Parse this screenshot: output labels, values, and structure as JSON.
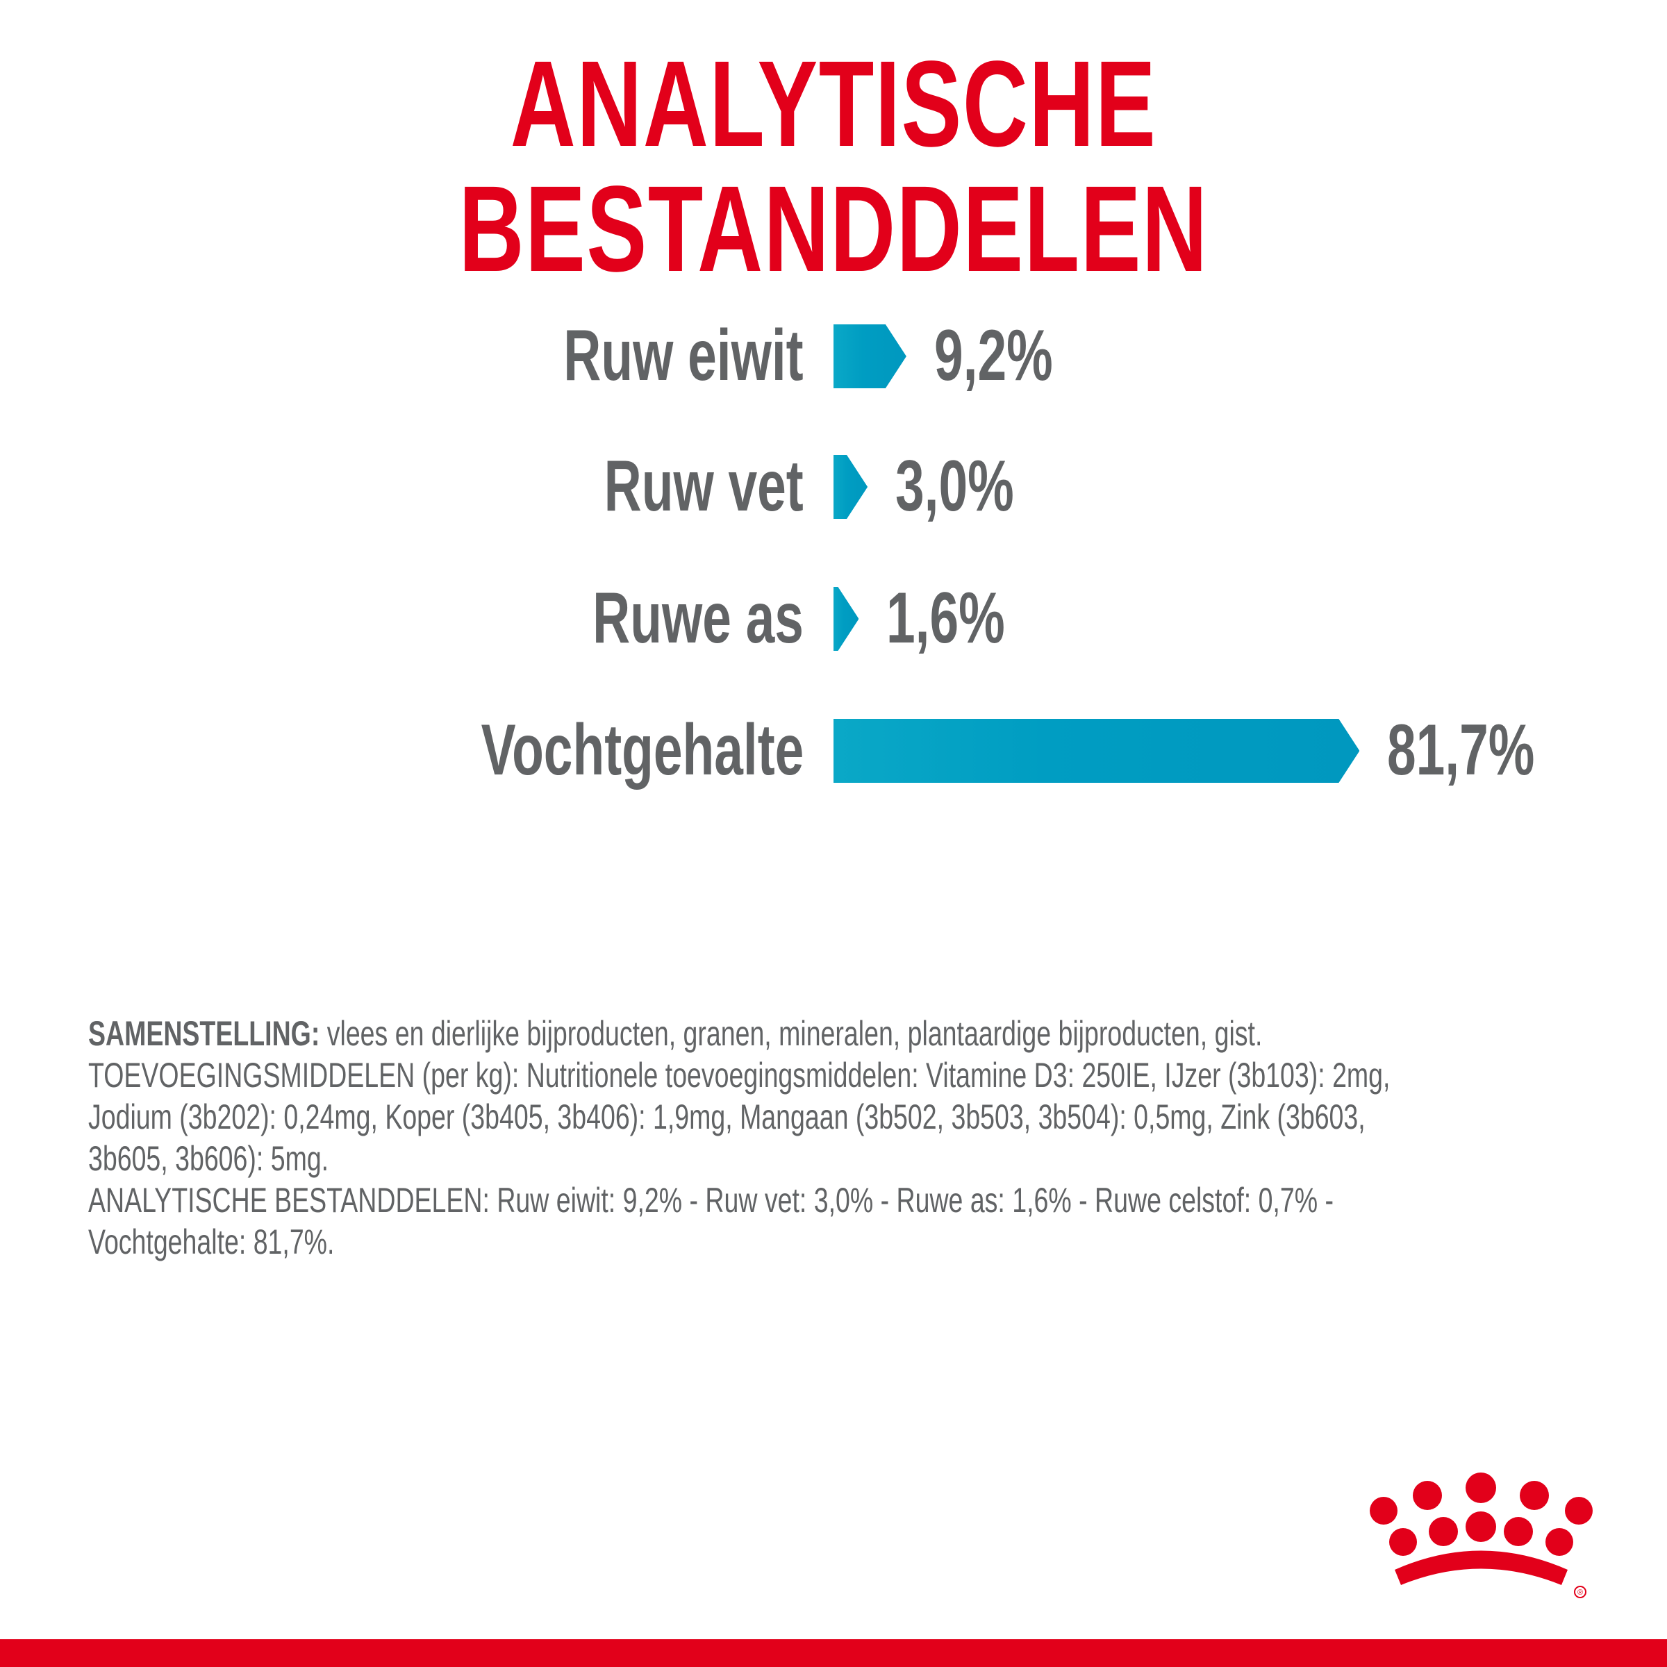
{
  "title": "ANALYTISCHE BESTANDDELEN",
  "chart_data": {
    "type": "bar",
    "orientation": "horizontal",
    "categories": [
      "Ruw eiwit",
      "Ruw vet",
      "Ruwe as",
      "Vochtgehalte"
    ],
    "values": [
      9.2,
      3.0,
      1.6,
      81.7
    ],
    "value_labels": [
      "9,2%",
      "3,0%",
      "1,6%",
      "81,7%"
    ],
    "unit": "%",
    "bar_color": "#009dc2",
    "grid": false
  },
  "composition": {
    "heading": "SAMENSTELLING:",
    "first_line_rest": " vlees en dierlijke bijproducten, granen, mineralen, plantaardige bijproducten, gist.",
    "lines": [
      "TOEVOEGINGSMIDDELEN (per kg): Nutritionele toevoegingsmiddelen: Vitamine D3: 250IE, IJzer (3b103): 2mg,",
      "Jodium (3b202): 0,24mg, Koper (3b405, 3b406): 1,9mg, Mangaan (3b502, 3b503, 3b504): 0,5mg, Zink (3b603,",
      "3b605, 3b606): 5mg.",
      "ANALYTISCHE BESTANDDELEN: Ruw eiwit: 9,2% - Ruw vet: 3,0% - Ruwe as: 1,6% - Ruwe celstof: 0,7% -",
      "Vochtgehalte: 81,7%."
    ]
  },
  "brand": {
    "logo": "royal-canin-crown-logo",
    "registered_mark": "®",
    "color": "#e2001a"
  }
}
